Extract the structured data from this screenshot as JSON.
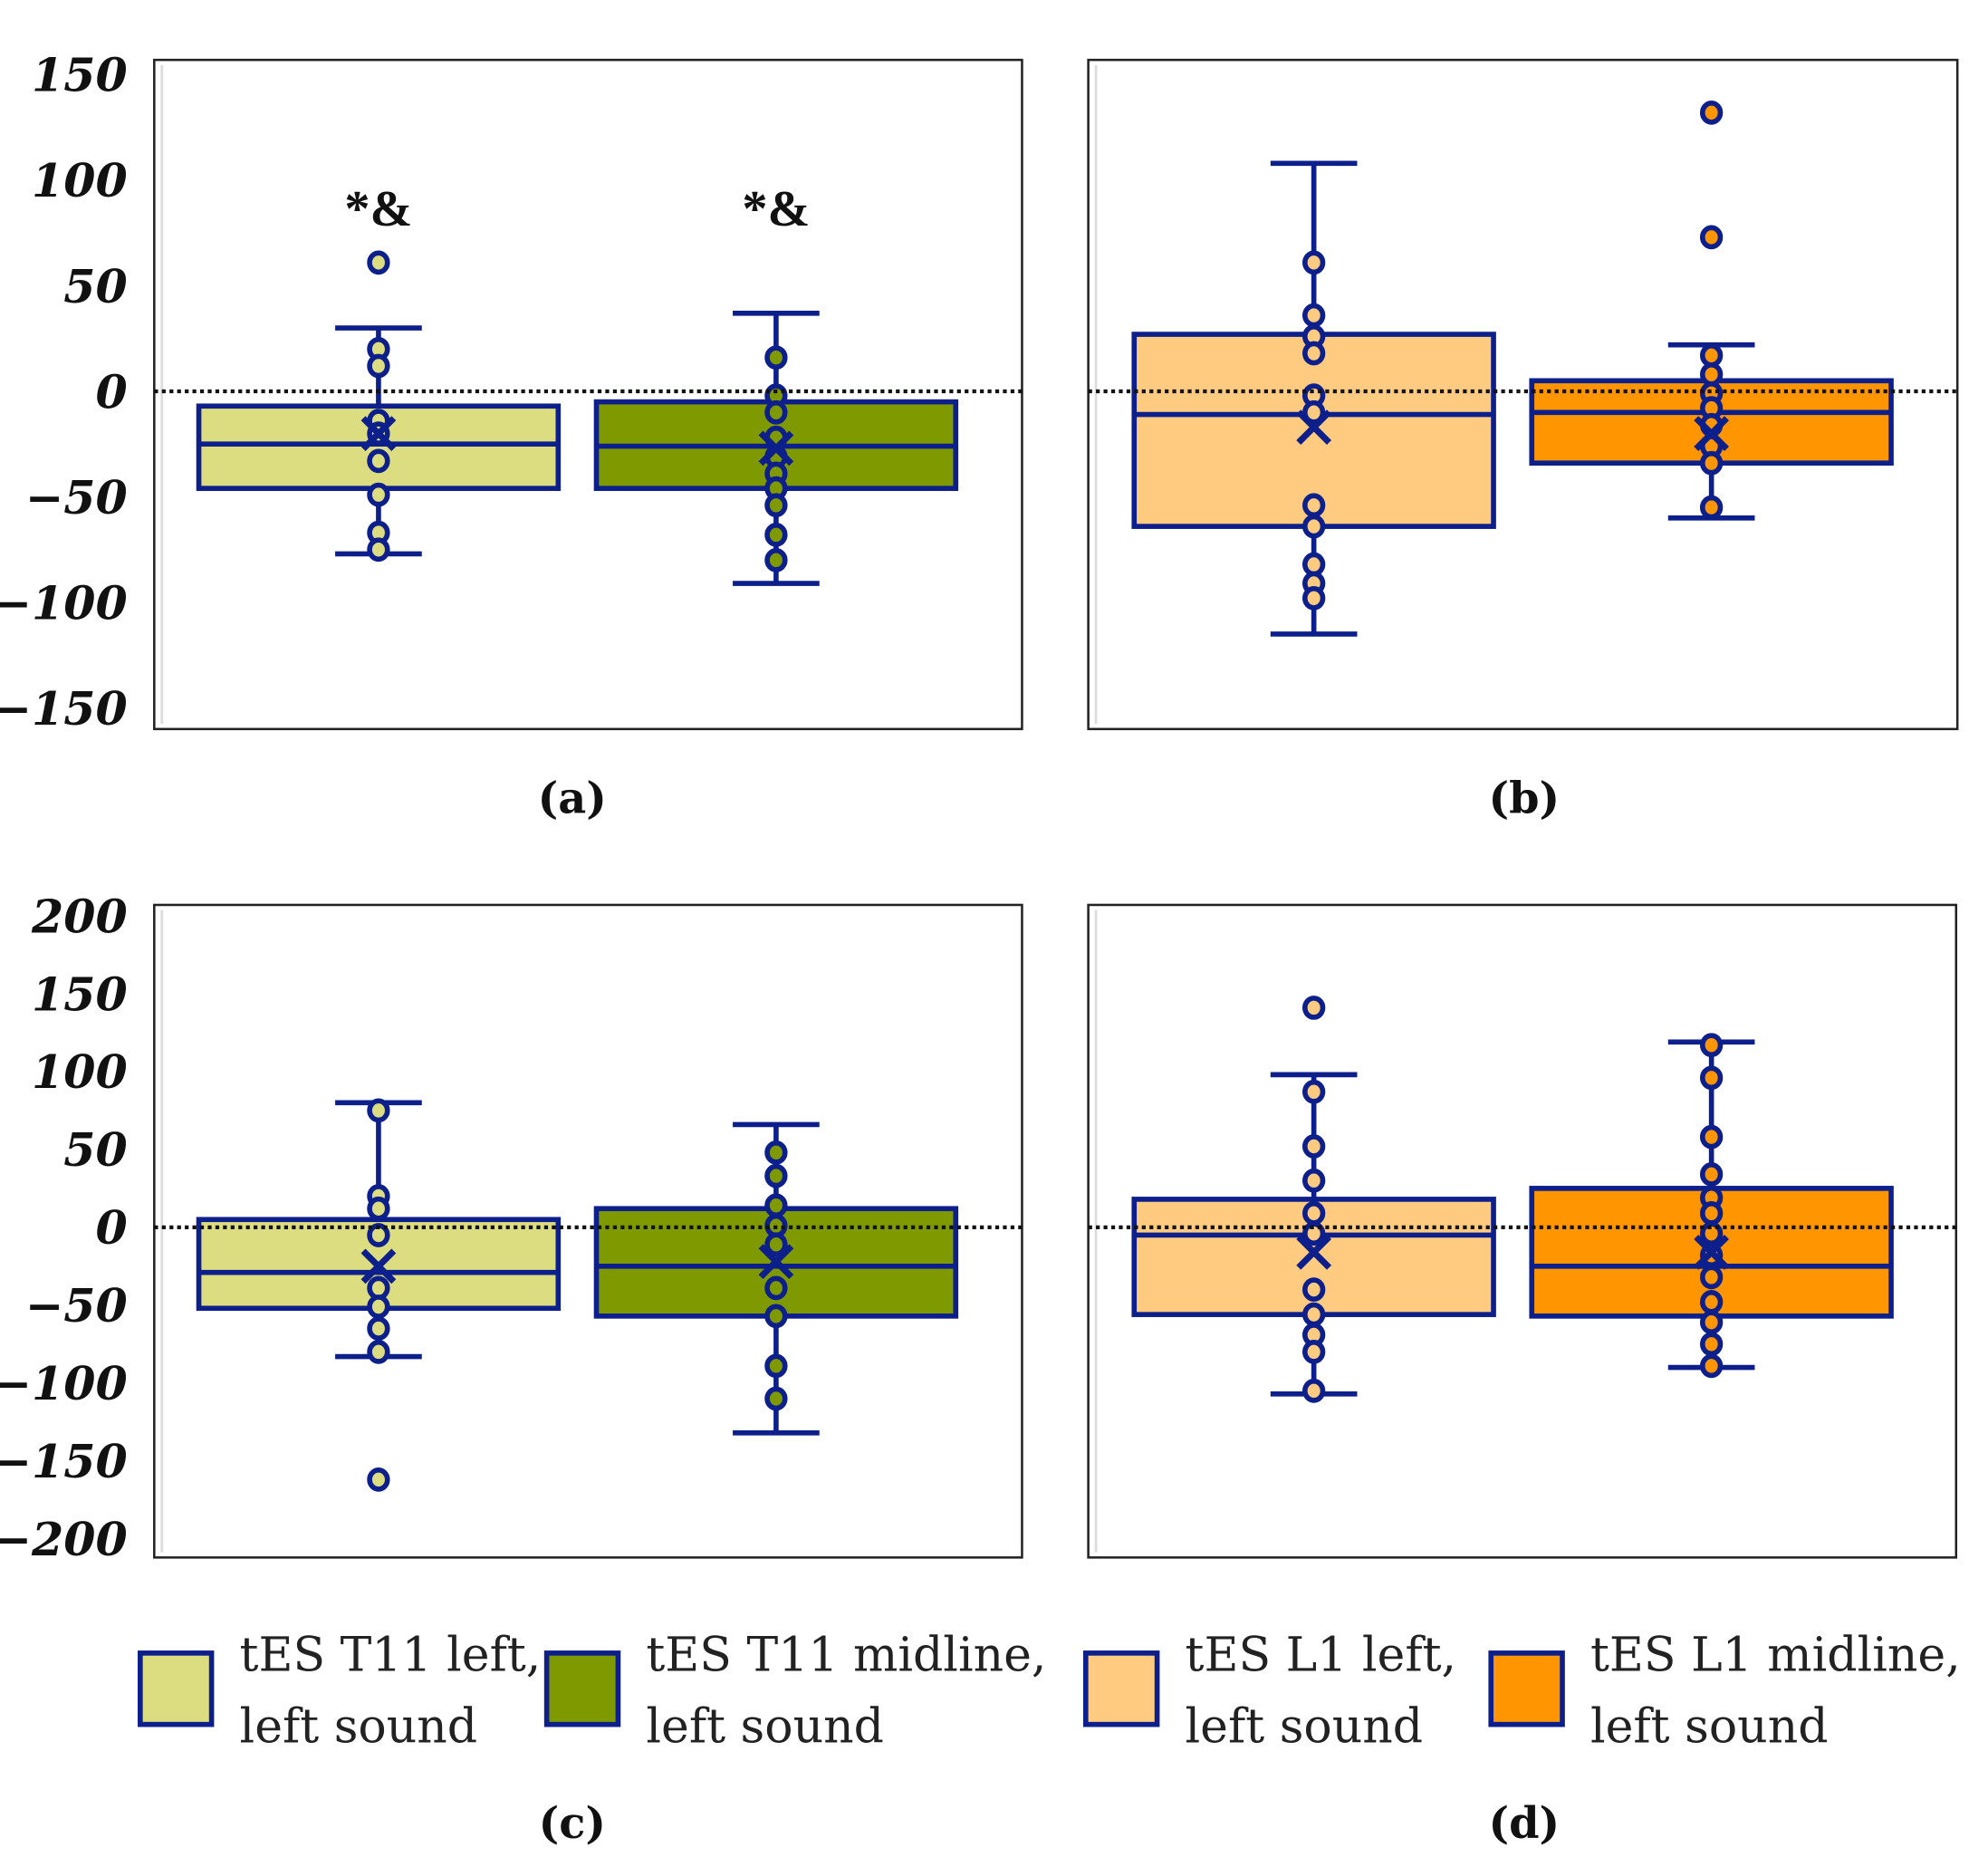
{
  "colors": {
    "stroke": "#0d1f8a",
    "t11_left": "#dcdc80",
    "t11_midline": "#7f9a00",
    "l1_left": "#fecb80",
    "l1_midline": "#ff9500"
  },
  "legend": [
    {
      "line1": "tES T11 left,",
      "line2": "left sound",
      "color_key": "t11_left"
    },
    {
      "line1": "tES T11 midline,",
      "line2": "left sound",
      "color_key": "t11_midline"
    },
    {
      "line1": "tES L1 left,",
      "line2": "left sound",
      "color_key": "l1_left"
    },
    {
      "line1": "tES L1 midline,",
      "line2": "left sound",
      "color_key": "l1_midline"
    }
  ],
  "chart_data": [
    {
      "type": "box",
      "label": "(a)",
      "ylim": [
        -160,
        157
      ],
      "yticks": [
        "150",
        "100",
        "50",
        "0",
        "−50",
        "−100",
        "−150"
      ],
      "ytick_values": [
        150,
        100,
        50,
        0,
        -50,
        -100,
        -150
      ],
      "reference_line": 0,
      "boxes": [
        {
          "group": "t11_left",
          "annotation": "*&",
          "whisker_high": 30,
          "q3": -7,
          "median": -25,
          "q1": -46,
          "whisker_low": -77,
          "mean": -20,
          "points": [
            61,
            20,
            12,
            -14,
            -20,
            -33,
            -49,
            -67,
            -75
          ]
        },
        {
          "group": "t11_midline",
          "annotation": "*&",
          "whisker_high": 37,
          "q3": -5,
          "median": -26,
          "q1": -46,
          "whisker_low": -91,
          "mean": -27,
          "points": [
            16,
            -2,
            -10,
            -22,
            -31,
            -39,
            -46,
            -54,
            -68,
            -80
          ]
        }
      ]
    },
    {
      "type": "box",
      "label": "(b)",
      "ylim": [
        -160,
        157
      ],
      "reference_line": 0,
      "boxes": [
        {
          "group": "l1_left",
          "whisker_high": 108,
          "q3": 27,
          "median": -11,
          "q1": -64,
          "whisker_low": -115,
          "mean": -17,
          "points": [
            61,
            36,
            26,
            18,
            -2,
            -10,
            -54,
            -64,
            -82,
            -91,
            -98
          ]
        },
        {
          "group": "l1_midline",
          "whisker_high": 22,
          "q3": 5,
          "median": -10,
          "q1": -34,
          "whisker_low": -60,
          "mean": -20,
          "points": [
            132,
            73,
            17,
            8,
            -1,
            -8,
            -16,
            -26,
            -34,
            -55
          ]
        }
      ]
    },
    {
      "type": "box",
      "label": "(c)",
      "ylim": [
        -212,
        207
      ],
      "yticks": [
        "200",
        "150",
        "100",
        "50",
        "0",
        "−50",
        "−100",
        "−150",
        "−200"
      ],
      "ytick_values": [
        200,
        150,
        100,
        50,
        0,
        -50,
        -100,
        -150,
        -200
      ],
      "reference_line": 0,
      "boxes": [
        {
          "group": "t11_left",
          "whisker_high": 80,
          "q3": 5,
          "median": -29,
          "q1": -52,
          "whisker_low": -83,
          "mean": -25,
          "points": [
            75,
            20,
            12,
            -5,
            -39,
            -51,
            -65,
            -80,
            -162
          ]
        },
        {
          "group": "t11_midline",
          "whisker_high": 66,
          "q3": 12,
          "median": -25,
          "q1": -57,
          "whisker_low": -132,
          "mean": -22,
          "points": [
            48,
            33,
            14,
            1,
            -11,
            -39,
            -57,
            -89,
            -110
          ]
        }
      ]
    },
    {
      "type": "box",
      "label": "(d)",
      "ylim": [
        -212,
        207
      ],
      "reference_line": 0,
      "boxes": [
        {
          "group": "l1_left",
          "whisker_high": 98,
          "q3": 18,
          "median": -5,
          "q1": -56,
          "whisker_low": -107,
          "mean": -16,
          "points": [
            141,
            87,
            52,
            30,
            9,
            -4,
            -40,
            -56,
            -69,
            -80,
            -105
          ]
        },
        {
          "group": "l1_midline",
          "whisker_high": 119,
          "q3": 25,
          "median": -25,
          "q1": -57,
          "whisker_low": -90,
          "mean": -16,
          "points": [
            117,
            96,
            58,
            34,
            19,
            9,
            -4,
            -18,
            -32,
            -48,
            -61,
            -75,
            -89
          ]
        }
      ]
    }
  ]
}
